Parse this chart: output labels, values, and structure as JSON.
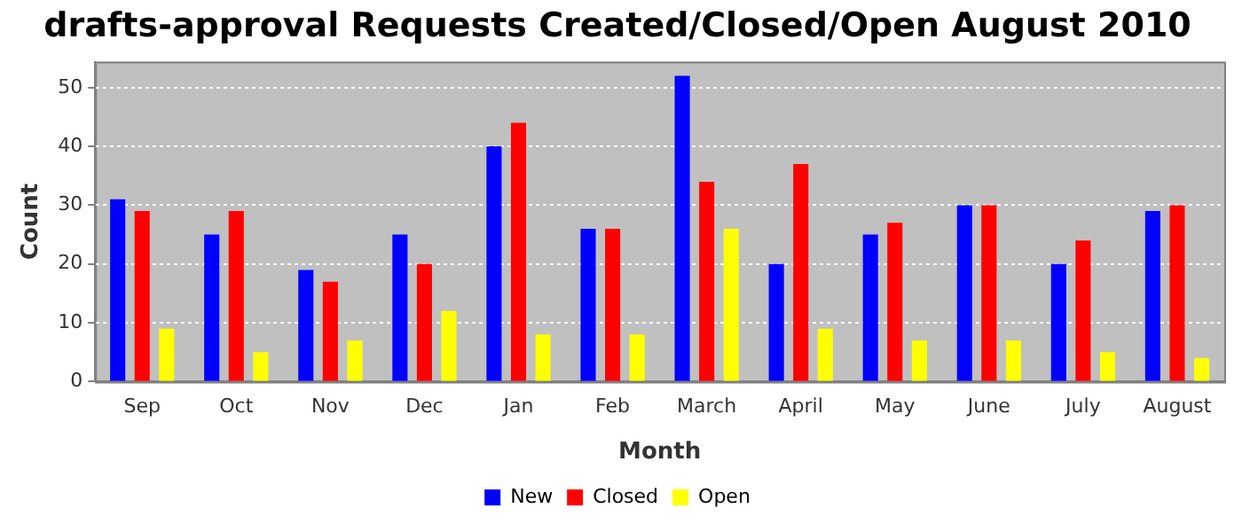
{
  "chart_data": {
    "type": "bar",
    "title": "drafts-approval Requests Created/Closed/Open August 2010",
    "xlabel": "Month",
    "ylabel": "Count",
    "categories": [
      "Sep",
      "Oct",
      "Nov",
      "Dec",
      "Jan",
      "Feb",
      "March",
      "April",
      "May",
      "June",
      "July",
      "August"
    ],
    "series": [
      {
        "name": "New",
        "color": "#0000ff",
        "values": [
          31,
          25,
          19,
          25,
          40,
          26,
          52,
          20,
          25,
          30,
          20,
          29
        ]
      },
      {
        "name": "Closed",
        "color": "#ff0000",
        "values": [
          29,
          29,
          17,
          20,
          44,
          26,
          34,
          37,
          27,
          30,
          24,
          30
        ]
      },
      {
        "name": "Open",
        "color": "#ffff00",
        "values": [
          9,
          5,
          7,
          12,
          8,
          8,
          26,
          9,
          7,
          7,
          5,
          4
        ]
      }
    ],
    "ylim": [
      0,
      54.4
    ],
    "yticks": [
      0,
      10,
      20,
      30,
      40,
      50
    ],
    "grid": "y",
    "legend": "bottom"
  }
}
